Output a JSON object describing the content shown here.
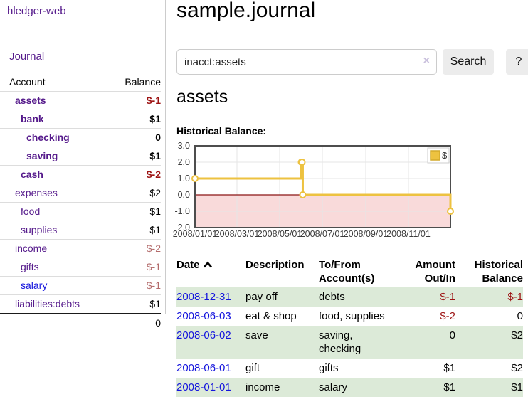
{
  "colors": {
    "purple": "#551a8b",
    "blue": "#1414dd",
    "neg_strong": "#9d1313",
    "neg_soft": "#b36b6b",
    "row_green": "#dcead8",
    "series_yellow": "#edc240",
    "neg_region_pink": "#f9dada",
    "zero_line_red": "#8b1414",
    "grid": "#e5e5e5",
    "chart_border": "#4d4d4d",
    "tick_text": "#3c3c3c"
  },
  "sidebar": {
    "app_title": "hledger-web",
    "nav_journal": "Journal",
    "accounts": {
      "header_account": "Account",
      "header_balance": "Balance",
      "rows": [
        {
          "name": "assets",
          "indent": 1,
          "bold": true,
          "link": "purple",
          "balance": "$-1",
          "neg": "strong"
        },
        {
          "name": "bank",
          "indent": 2,
          "bold": true,
          "link": "purple",
          "balance": "$1",
          "neg": null
        },
        {
          "name": "checking",
          "indent": 3,
          "bold": true,
          "link": "purple",
          "balance": "0",
          "neg": null
        },
        {
          "name": "saving",
          "indent": 3,
          "bold": true,
          "link": "purple",
          "balance": "$1",
          "neg": null
        },
        {
          "name": "cash",
          "indent": 2,
          "bold": true,
          "link": "purple",
          "balance": "$-2",
          "neg": "strong"
        },
        {
          "name": "expenses",
          "indent": 1,
          "bold": false,
          "link": "purple",
          "balance": "$2",
          "neg": null
        },
        {
          "name": "food",
          "indent": 2,
          "bold": false,
          "link": "purple",
          "balance": "$1",
          "neg": null
        },
        {
          "name": "supplies",
          "indent": 2,
          "bold": false,
          "link": "purple",
          "balance": "$1",
          "neg": null
        },
        {
          "name": "income",
          "indent": 1,
          "bold": false,
          "link": "purple",
          "balance": "$-2",
          "neg": "soft"
        },
        {
          "name": "gifts",
          "indent": 2,
          "bold": false,
          "link": "purple",
          "balance": "$-1",
          "neg": "soft"
        },
        {
          "name": "salary",
          "indent": 2,
          "bold": false,
          "link": "blue",
          "balance": "$-1",
          "neg": "soft"
        },
        {
          "name": "liabilities:debts",
          "indent": 1,
          "bold": false,
          "link": "purple",
          "balance": "$1",
          "neg": null
        }
      ],
      "total": "0"
    }
  },
  "header": {
    "title": "sample.journal"
  },
  "search": {
    "value": "inacct:assets",
    "clear_icon": "×",
    "button_label": "Search",
    "help_label": "?"
  },
  "account_page": {
    "title": "assets",
    "chart_label": "Historical Balance:"
  },
  "chart_data": {
    "type": "line",
    "steps": true,
    "series": [
      {
        "name": "$",
        "color": "#edc240",
        "x": [
          "2008-01-01",
          "2008-06-01",
          "2008-06-02",
          "2008-06-03",
          "2008-12-31"
        ],
        "values": [
          1,
          2,
          2,
          0,
          -1
        ]
      }
    ],
    "xlim": [
      "2008-01-01",
      "2008-12-31"
    ],
    "ylim": [
      -2.0,
      3.0
    ],
    "yticks": [
      "3.0",
      "2.0",
      "1.0",
      "0.0",
      "-1.0",
      "-2.0"
    ],
    "ytick_values": [
      3,
      2,
      1,
      0,
      -1,
      -2
    ],
    "xticks": [
      "2008/01/01",
      "2008/03/01",
      "2008/05/01",
      "2008/07/01",
      "2008/09/01",
      "2008/11/01"
    ],
    "xtick_dates": [
      "2008-01-01",
      "2008-03-01",
      "2008-05-01",
      "2008-07-01",
      "2008-09-01",
      "2008-11-01"
    ],
    "grid": true,
    "legend_position": "top-right",
    "negative_region_shaded": true
  },
  "register": {
    "headers": {
      "date": "Date",
      "description": "Description",
      "accounts": "To/From Account(s)",
      "amount": "Amount Out/In",
      "balance": "Historical Balance"
    },
    "rows": [
      {
        "date": "2008-12-31",
        "description": "pay off",
        "accounts": "debts",
        "amount": "$-1",
        "amount_neg": true,
        "balance": "$-1",
        "balance_neg": true,
        "highlight": true
      },
      {
        "date": "2008-06-03",
        "description": "eat & shop",
        "accounts": "food, supplies",
        "amount": "$-2",
        "amount_neg": true,
        "balance": "0",
        "balance_neg": false,
        "highlight": false
      },
      {
        "date": "2008-06-02",
        "description": "save",
        "accounts": "saving, checking",
        "amount": "0",
        "amount_neg": false,
        "balance": "$2",
        "balance_neg": false,
        "highlight": true
      },
      {
        "date": "2008-06-01",
        "description": "gift",
        "accounts": "gifts",
        "amount": "$1",
        "amount_neg": false,
        "balance": "$2",
        "balance_neg": false,
        "highlight": false
      },
      {
        "date": "2008-01-01",
        "description": "income",
        "accounts": "salary",
        "amount": "$1",
        "amount_neg": false,
        "balance": "$1",
        "balance_neg": false,
        "highlight": true
      }
    ]
  }
}
